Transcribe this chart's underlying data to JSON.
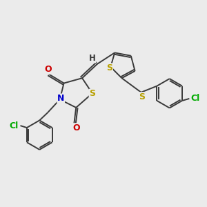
{
  "bg_color": "#ebebeb",
  "bond_color": "#3a3a3a",
  "atom_colors": {
    "S": "#b8a000",
    "N": "#0000cc",
    "O": "#cc0000",
    "Cl": "#00aa00",
    "C": "#3a3a3a",
    "H": "#3a3a3a"
  },
  "lw": 1.4,
  "fs": 8.5
}
